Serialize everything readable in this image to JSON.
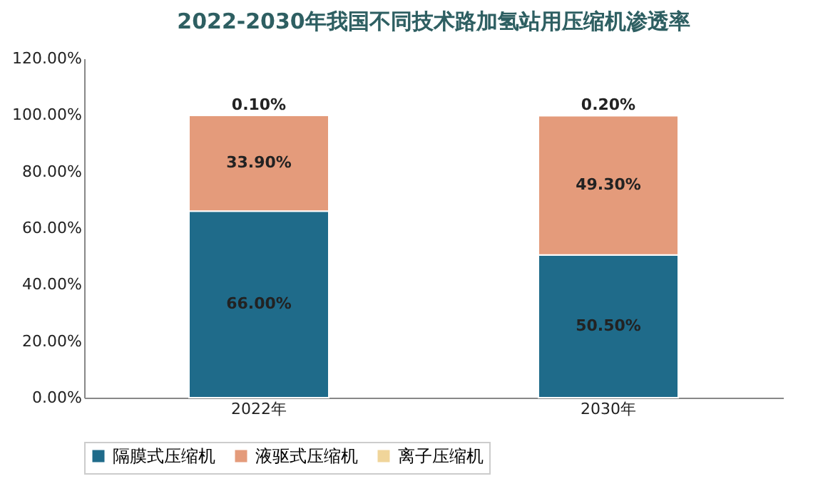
{
  "chart_data": {
    "type": "bar",
    "title": "2022-2030年我国不同技术路加氢站用压缩机渗透率",
    "categories": [
      "2022年",
      "2030年"
    ],
    "stacked": true,
    "legend": "bottom",
    "grid": false,
    "series": [
      {
        "name": "隔膜式压缩机",
        "color": "#1f6b8a",
        "values": [
          66.0,
          50.5
        ],
        "value_labels": [
          "66.00%",
          "50.50%"
        ]
      },
      {
        "name": "液驱式压缩机",
        "color": "#e49b7b",
        "values": [
          33.9,
          49.3
        ],
        "value_labels": [
          "33.90%",
          "49.30%"
        ]
      },
      {
        "name": "离子压缩机",
        "color": "#f0d59a",
        "values": [
          0.1,
          0.2
        ],
        "value_labels": [
          "0.10%",
          "0.20%"
        ]
      }
    ],
    "ylim": [
      0,
      120
    ],
    "yticks": [
      {
        "value": 0,
        "label": "0.00%"
      },
      {
        "value": 20,
        "label": "20.00%"
      },
      {
        "value": 40,
        "label": "40.00%"
      },
      {
        "value": 60,
        "label": "60.00%"
      },
      {
        "value": 80,
        "label": "80.00%"
      },
      {
        "value": 100,
        "label": "100.00%"
      },
      {
        "value": 120,
        "label": "120.00%"
      }
    ]
  }
}
